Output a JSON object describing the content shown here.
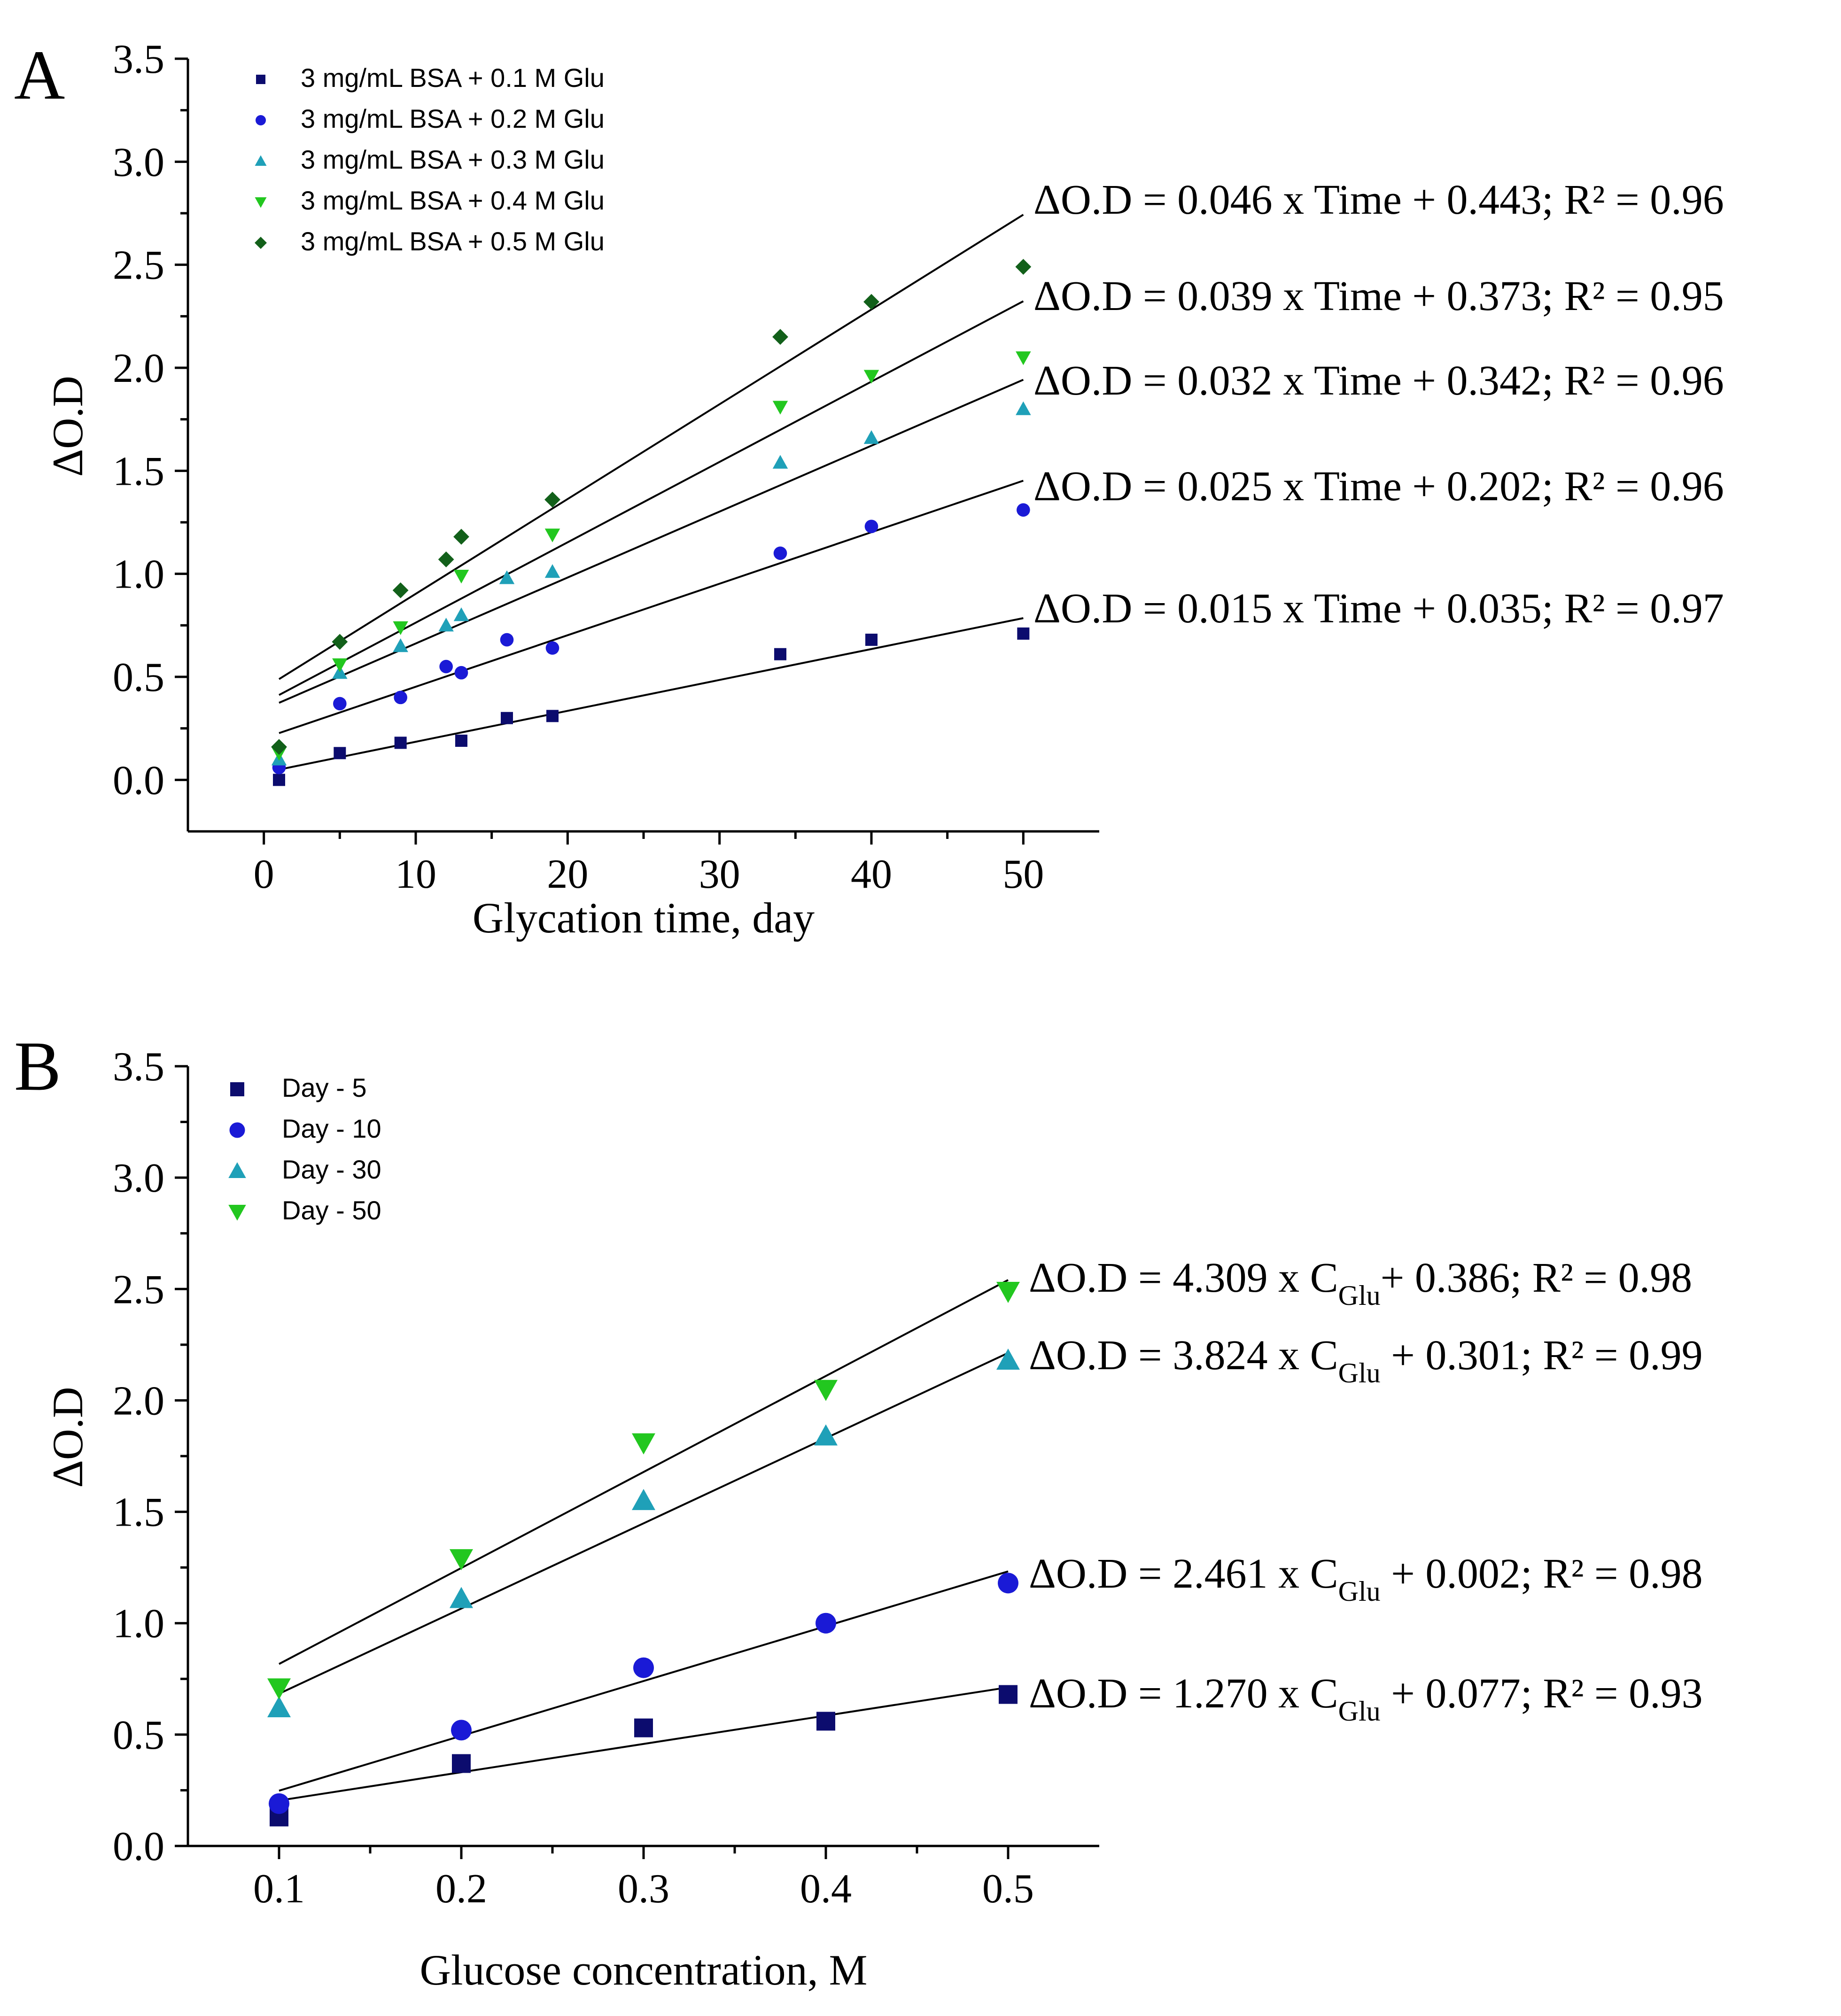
{
  "colors": {
    "navy": "#0c0c6e",
    "blue": "#1a1ad6",
    "teal": "#1fa0b8",
    "green": "#22c71f",
    "darkgreen": "#12601a"
  },
  "chart_data": [
    {
      "panel": "A",
      "type": "scatter",
      "xlabel": "Glycation  time,  day",
      "ylabel": "ΔO.D",
      "xlim": [
        -5,
        55
      ],
      "ylim": [
        -0.25,
        3.5
      ],
      "xticks": [
        0,
        10,
        20,
        30,
        40,
        50
      ],
      "yticks": [
        0.0,
        0.5,
        1.0,
        1.5,
        2.0,
        2.5,
        3.0,
        3.5
      ],
      "ytick_labels": [
        "0.0",
        "0.5",
        "1.0",
        "1.5",
        "2.0",
        "2.5",
        "3.0",
        "3.5"
      ],
      "legend_position": "top-left",
      "series": [
        {
          "name": "3 mg/mL BSA + 0.1 M Glu",
          "marker": "square",
          "color": "#0c0c6e",
          "x": [
            1,
            5,
            9,
            13,
            16,
            19,
            34,
            40,
            50
          ],
          "y": [
            0.0,
            0.13,
            0.18,
            0.19,
            0.3,
            0.31,
            0.61,
            0.68,
            0.71
          ],
          "fit": {
            "slope": 0.015,
            "intercept": 0.035,
            "x_range": [
              1,
              50
            ]
          },
          "equation": "ΔO.D  = 0.015 x Time + 0.035; R² = 0.97"
        },
        {
          "name": "3 mg/mL BSA + 0.2 M Glu",
          "marker": "circle",
          "color": "#1a1ad6",
          "x": [
            1,
            5,
            9,
            12,
            13,
            16,
            19,
            34,
            40,
            50
          ],
          "y": [
            0.06,
            0.37,
            0.4,
            0.55,
            0.52,
            0.68,
            0.64,
            1.1,
            1.23,
            1.31
          ],
          "fit": {
            "slope": 0.025,
            "intercept": 0.202,
            "x_range": [
              1,
              50
            ]
          },
          "equation": "ΔO.D = 0.025 x Time + 0.202; R² = 0.96"
        },
        {
          "name": "3 mg/mL BSA + 0.3 M Glu",
          "marker": "triangle-up",
          "color": "#1fa0b8",
          "x": [
            1,
            5,
            9,
            12,
            13,
            16,
            19,
            34,
            40,
            50
          ],
          "y": [
            0.1,
            0.52,
            0.65,
            0.75,
            0.8,
            0.98,
            1.01,
            1.54,
            1.66,
            1.8
          ],
          "fit": {
            "slope": 0.032,
            "intercept": 0.342,
            "x_range": [
              1,
              50
            ]
          },
          "equation": "ΔO.D = 0.032 x Time + 0.342; R² = 0.96"
        },
        {
          "name": "3 mg/mL BSA + 0.4 M Glu",
          "marker": "triangle-down",
          "color": "#22c71f",
          "x": [
            1,
            5,
            9,
            13,
            19,
            34,
            40,
            50
          ],
          "y": [
            0.13,
            0.56,
            0.74,
            0.99,
            1.19,
            1.81,
            1.96,
            2.05
          ],
          "fit": {
            "slope": 0.039,
            "intercept": 0.373,
            "x_range": [
              1,
              50
            ]
          },
          "equation": "ΔO.D = 0.039 x Time + 0.373; R² = 0.95"
        },
        {
          "name": "3 mg/mL BSA + 0.5 M Glu",
          "marker": "diamond",
          "color": "#12601a",
          "x": [
            1,
            5,
            9,
            12,
            13,
            19,
            34,
            40,
            50
          ],
          "y": [
            0.16,
            0.67,
            0.92,
            1.07,
            1.18,
            1.36,
            2.15,
            2.32,
            2.49
          ],
          "fit": {
            "slope": 0.046,
            "intercept": 0.443,
            "x_range": [
              1,
              50
            ]
          },
          "equation": "ΔO.D = 0.046 x Time + 0.443; R² = 0.96"
        }
      ]
    },
    {
      "panel": "B",
      "type": "scatter",
      "xlabel": "Glucose  concentration,  M",
      "ylabel": "ΔO.D",
      "xlim": [
        0.05,
        0.55
      ],
      "ylim": [
        0.0,
        3.5
      ],
      "xticks": [
        0.1,
        0.2,
        0.3,
        0.4,
        0.5
      ],
      "xtick_labels": [
        "0.1",
        "0.2",
        "0.3",
        "0.4",
        "0.5"
      ],
      "yticks": [
        0.0,
        0.5,
        1.0,
        1.5,
        2.0,
        2.5,
        3.0,
        3.5
      ],
      "ytick_labels": [
        "0.0",
        "0.5",
        "1.0",
        "1.5",
        "2.0",
        "2.5",
        "3.0",
        "3.5"
      ],
      "legend_position": "top-left",
      "series": [
        {
          "name": "Day - 5",
          "marker": "square",
          "color": "#0c0c6e",
          "x": [
            0.1,
            0.2,
            0.3,
            0.4,
            0.5
          ],
          "y": [
            0.13,
            0.37,
            0.53,
            0.56,
            0.68
          ],
          "fit": {
            "slope": 1.27,
            "intercept": 0.077,
            "x_range": [
              0.1,
              0.5
            ]
          },
          "equation": {
            "prefix": "ΔO.D  = 1.270 x C",
            "sub": "Glu",
            "suffix": " + 0.077; R² = 0.93"
          }
        },
        {
          "name": "Day - 10",
          "marker": "circle",
          "color": "#1a1ad6",
          "x": [
            0.1,
            0.2,
            0.3,
            0.4,
            0.5
          ],
          "y": [
            0.19,
            0.52,
            0.8,
            1.0,
            1.18
          ],
          "fit": {
            "slope": 2.461,
            "intercept": 0.002,
            "x_range": [
              0.1,
              0.5
            ]
          },
          "equation": {
            "prefix": "ΔO.D = 2.461 x C",
            "sub": "Glu",
            "suffix": " + 0.002; R² = 0.98"
          }
        },
        {
          "name": "Day - 30",
          "marker": "triangle-up",
          "color": "#1fa0b8",
          "x": [
            0.1,
            0.2,
            0.3,
            0.4,
            0.5
          ],
          "y": [
            0.62,
            1.11,
            1.55,
            1.84,
            2.18
          ],
          "fit": {
            "slope": 3.824,
            "intercept": 0.301,
            "x_range": [
              0.1,
              0.5
            ]
          },
          "equation": {
            "prefix": "ΔO.D = 3.824 x C",
            "sub": "Glu",
            "suffix": " + 0.301; R² = 0.99"
          }
        },
        {
          "name": "Day - 50",
          "marker": "triangle-down",
          "color": "#22c71f",
          "x": [
            0.1,
            0.2,
            0.3,
            0.4,
            0.5
          ],
          "y": [
            0.71,
            1.29,
            1.81,
            2.05,
            2.49
          ],
          "fit": {
            "slope": 4.309,
            "intercept": 0.386,
            "x_range": [
              0.1,
              0.5
            ]
          },
          "equation": {
            "prefix": "ΔO.D = 4.309 x C",
            "sub": "Glu",
            "suffix": "+ 0.386; R² = 0.98"
          }
        }
      ]
    }
  ]
}
